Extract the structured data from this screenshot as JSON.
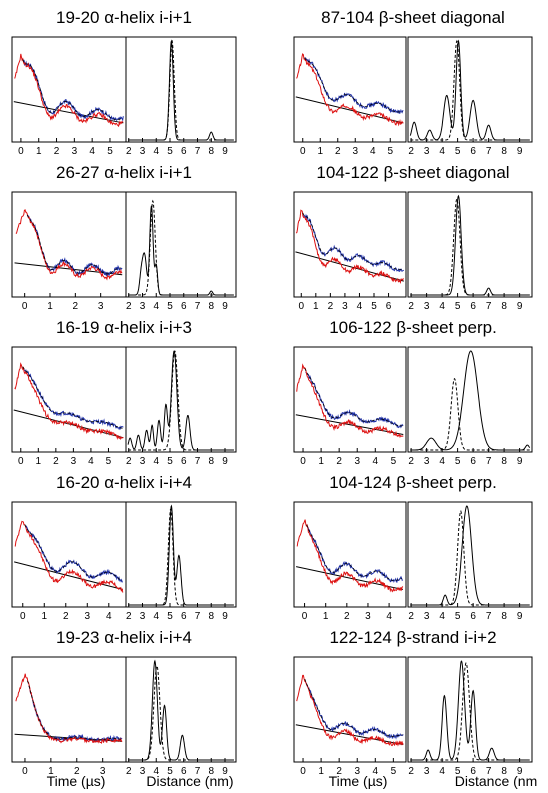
{
  "figure": {
    "x_axis_labels": {
      "time": "Time (µs)",
      "distance": "Distance (nm)",
      "distance_clipped": "Distance (nm"
    }
  },
  "colors": {
    "signal_blue": "#2233aa",
    "signal_red": "#dd1111",
    "fit_black": "#000000",
    "baseline_gray": "#888888"
  },
  "chart_data": [
    {
      "type": "line",
      "title": "19-20 α-helix i-i+1",
      "time_axis": {
        "xlim": [
          -0.5,
          5.9
        ],
        "ticks": [
          0,
          1,
          2,
          3,
          4,
          5
        ]
      },
      "signal": {
        "peak": 1.0,
        "decay": 0.8,
        "osc_freq": 0.55,
        "osc_amp": 0.18,
        "blue_offset": 0.06,
        "baseline_start": 0.36,
        "baseline_end": 0.14
      },
      "distance_axis": {
        "xlim": [
          1.8,
          9.8
        ],
        "ticks": [
          2,
          3,
          4,
          5,
          6,
          7,
          8,
          9
        ]
      },
      "distribution": {
        "solid": [
          {
            "c": 5.1,
            "w": 0.14,
            "h": 1.0
          },
          {
            "c": 8.0,
            "w": 0.12,
            "h": 0.08
          }
        ],
        "dashed": [
          {
            "c": 5.15,
            "w": 0.16,
            "h": 1.0
          }
        ]
      }
    },
    {
      "type": "line",
      "title": "87-104 β-sheet diagonal",
      "time_axis": {
        "xlim": [
          -0.5,
          5.9
        ],
        "ticks": [
          0,
          1,
          2,
          3,
          4,
          5
        ]
      },
      "signal": {
        "peak": 1.0,
        "decay": 0.8,
        "osc_freq": 0.55,
        "osc_amp": 0.12,
        "blue_offset": 0.14,
        "baseline_start": 0.42,
        "baseline_end": 0.14
      },
      "distance_axis": {
        "xlim": [
          1.8,
          9.8
        ],
        "ticks": [
          2,
          3,
          4,
          5,
          6,
          7,
          8,
          9
        ]
      },
      "distribution": {
        "solid": [
          {
            "c": 2.2,
            "w": 0.15,
            "h": 0.18
          },
          {
            "c": 3.2,
            "w": 0.15,
            "h": 0.1
          },
          {
            "c": 4.3,
            "w": 0.2,
            "h": 0.45
          },
          {
            "c": 5.05,
            "w": 0.15,
            "h": 1.0
          },
          {
            "c": 6.0,
            "w": 0.2,
            "h": 0.4
          },
          {
            "c": 7.0,
            "w": 0.15,
            "h": 0.15
          }
        ],
        "dashed": [
          {
            "c": 4.95,
            "w": 0.18,
            "h": 1.0
          }
        ]
      }
    },
    {
      "type": "line",
      "title": "26-27 α-helix i-i+1",
      "time_axis": {
        "xlim": [
          -0.5,
          4.0
        ],
        "ticks": [
          0,
          1,
          2,
          3
        ]
      },
      "signal": {
        "peak": 1.0,
        "decay": 0.55,
        "osc_freq": 0.9,
        "osc_amp": 0.12,
        "blue_offset": 0.04,
        "baseline_start": 0.28,
        "baseline_end": 0.18
      },
      "distance_axis": {
        "xlim": [
          1.8,
          9.8
        ],
        "ticks": [
          2,
          3,
          4,
          5,
          6,
          7,
          8,
          9
        ]
      },
      "distribution": {
        "solid": [
          {
            "c": 2.9,
            "w": 0.12,
            "h": 0.18
          },
          {
            "c": 3.15,
            "w": 0.15,
            "h": 0.4
          },
          {
            "c": 3.65,
            "w": 0.12,
            "h": 0.9
          },
          {
            "c": 4.0,
            "w": 0.1,
            "h": 0.3
          },
          {
            "c": 8.0,
            "w": 0.1,
            "h": 0.04
          }
        ],
        "dashed": [
          {
            "c": 3.75,
            "w": 0.18,
            "h": 0.95
          }
        ]
      }
    },
    {
      "type": "line",
      "title": "104-122 β-sheet diagonal",
      "time_axis": {
        "xlim": [
          -0.5,
          7.2
        ],
        "ticks": [
          0,
          1,
          2,
          3,
          4,
          5,
          6
        ]
      },
      "signal": {
        "peak": 1.0,
        "decay": 0.75,
        "osc_freq": 0.6,
        "osc_amp": 0.12,
        "blue_offset": 0.14,
        "baseline_start": 0.42,
        "baseline_end": 0.1
      },
      "distance_axis": {
        "xlim": [
          1.8,
          9.8
        ],
        "ticks": [
          2,
          3,
          4,
          5,
          6,
          7,
          8,
          9
        ]
      },
      "distribution": {
        "solid": [
          {
            "c": 5.05,
            "w": 0.18,
            "h": 1.0
          },
          {
            "c": 7.0,
            "w": 0.12,
            "h": 0.07
          }
        ],
        "dashed": [
          {
            "c": 4.95,
            "w": 0.2,
            "h": 0.97
          }
        ]
      }
    },
    {
      "type": "line",
      "title": "16-19 α-helix i-i+3",
      "time_axis": {
        "xlim": [
          -0.5,
          6.0
        ],
        "ticks": [
          0,
          1,
          2,
          3,
          4,
          5
        ]
      },
      "signal": {
        "peak": 1.0,
        "decay": 0.9,
        "osc_freq": 0.5,
        "osc_amp": 0.06,
        "blue_offset": 0.12,
        "baseline_start": 0.38,
        "baseline_end": 0.08
      },
      "distance_axis": {
        "xlim": [
          1.8,
          9.8
        ],
        "ticks": [
          2,
          3,
          4,
          5,
          6,
          7,
          8,
          9
        ]
      },
      "distribution": {
        "solid": [
          {
            "c": 2.1,
            "w": 0.12,
            "h": 0.12
          },
          {
            "c": 2.7,
            "w": 0.12,
            "h": 0.15
          },
          {
            "c": 3.3,
            "w": 0.12,
            "h": 0.2
          },
          {
            "c": 3.7,
            "w": 0.1,
            "h": 0.25
          },
          {
            "c": 4.2,
            "w": 0.12,
            "h": 0.3
          },
          {
            "c": 4.7,
            "w": 0.12,
            "h": 0.45
          },
          {
            "c": 5.3,
            "w": 0.2,
            "h": 1.0
          },
          {
            "c": 6.3,
            "w": 0.15,
            "h": 0.35
          }
        ],
        "dashed": [
          {
            "c": 5.35,
            "w": 0.22,
            "h": 1.0
          }
        ]
      }
    },
    {
      "type": "line",
      "title": "106-122 β-sheet perp.",
      "time_axis": {
        "xlim": [
          -0.5,
          5.7
        ],
        "ticks": [
          0,
          1,
          2,
          3,
          4,
          5
        ]
      },
      "signal": {
        "peak": 1.0,
        "decay": 0.7,
        "osc_freq": 0.55,
        "osc_amp": 0.1,
        "blue_offset": 0.12,
        "baseline_start": 0.32,
        "baseline_end": 0.12
      },
      "distance_axis": {
        "xlim": [
          1.8,
          9.8
        ],
        "ticks": [
          2,
          3,
          4,
          5,
          6,
          7,
          8,
          9
        ]
      },
      "distribution": {
        "solid": [
          {
            "c": 3.3,
            "w": 0.3,
            "h": 0.12
          },
          {
            "c": 5.85,
            "w": 0.45,
            "h": 1.0
          },
          {
            "c": 9.5,
            "w": 0.12,
            "h": 0.05
          }
        ],
        "dashed": [
          {
            "c": 4.8,
            "w": 0.22,
            "h": 0.72
          }
        ]
      }
    },
    {
      "type": "line",
      "title": "16-20 α-helix i-i+4",
      "time_axis": {
        "xlim": [
          -0.5,
          4.8
        ],
        "ticks": [
          0,
          1,
          2,
          3,
          4
        ]
      },
      "signal": {
        "peak": 1.0,
        "decay": 0.55,
        "osc_freq": 0.6,
        "osc_amp": 0.15,
        "blue_offset": 0.12,
        "baseline_start": 0.42,
        "baseline_end": 0.12
      },
      "distance_axis": {
        "xlim": [
          1.8,
          9.8
        ],
        "ticks": [
          2,
          3,
          4,
          5,
          6,
          7,
          8,
          9
        ]
      },
      "distribution": {
        "solid": [
          {
            "c": 5.1,
            "w": 0.15,
            "h": 1.0
          },
          {
            "c": 5.65,
            "w": 0.15,
            "h": 0.5
          }
        ],
        "dashed": [
          {
            "c": 5.05,
            "w": 0.17,
            "h": 0.97
          }
        ]
      }
    },
    {
      "type": "line",
      "title": "104-124 β-sheet perp.",
      "time_axis": {
        "xlim": [
          -0.5,
          4.8
        ],
        "ticks": [
          0,
          1,
          2,
          3,
          4
        ]
      },
      "signal": {
        "peak": 1.0,
        "decay": 0.5,
        "osc_freq": 0.7,
        "osc_amp": 0.12,
        "blue_offset": 0.12,
        "baseline_start": 0.36,
        "baseline_end": 0.12
      },
      "distance_axis": {
        "xlim": [
          1.8,
          9.8
        ],
        "ticks": [
          2,
          3,
          4,
          5,
          6,
          7,
          8,
          9
        ]
      },
      "distribution": {
        "solid": [
          {
            "c": 4.2,
            "w": 0.12,
            "h": 0.1
          },
          {
            "c": 5.6,
            "w": 0.3,
            "h": 1.0
          }
        ],
        "dashed": [
          {
            "c": 5.2,
            "w": 0.2,
            "h": 0.95
          }
        ]
      }
    },
    {
      "type": "line",
      "title": "19-23 α-helix i-i+4",
      "time_axis": {
        "xlim": [
          -0.5,
          3.9
        ],
        "ticks": [
          0,
          1,
          2,
          3
        ]
      },
      "signal": {
        "peak": 1.0,
        "decay": 0.45,
        "osc_freq": 0.7,
        "osc_amp": 0.03,
        "blue_offset": 0.02,
        "baseline_start": 0.2,
        "baseline_end": 0.16
      },
      "distance_axis": {
        "xlim": [
          1.8,
          9.8
        ],
        "ticks": [
          2,
          3,
          4,
          5,
          6,
          7,
          8,
          9
        ]
      },
      "distribution": {
        "solid": [
          {
            "c": 3.9,
            "w": 0.18,
            "h": 1.0
          },
          {
            "c": 4.6,
            "w": 0.15,
            "h": 0.55
          },
          {
            "c": 5.9,
            "w": 0.15,
            "h": 0.25
          }
        ],
        "dashed": [
          {
            "c": 4.05,
            "w": 0.22,
            "h": 0.95
          }
        ]
      }
    },
    {
      "type": "line",
      "title": "122-124 β-strand i-i+2",
      "time_axis": {
        "xlim": [
          -0.5,
          5.7
        ],
        "ticks": [
          0,
          1,
          2,
          3,
          4,
          5
        ]
      },
      "signal": {
        "peak": 1.0,
        "decay": 0.6,
        "osc_freq": 0.6,
        "osc_amp": 0.1,
        "blue_offset": 0.1,
        "baseline_start": 0.32,
        "baseline_end": 0.12
      },
      "distance_axis": {
        "xlim": [
          1.8,
          9.8
        ],
        "ticks": [
          2,
          3,
          4,
          5,
          6,
          7,
          8,
          9
        ]
      },
      "distribution": {
        "solid": [
          {
            "c": 3.1,
            "w": 0.12,
            "h": 0.1
          },
          {
            "c": 4.15,
            "w": 0.15,
            "h": 0.65
          },
          {
            "c": 5.25,
            "w": 0.2,
            "h": 1.0
          },
          {
            "c": 6.0,
            "w": 0.15,
            "h": 0.7
          },
          {
            "c": 7.2,
            "w": 0.15,
            "h": 0.12
          }
        ],
        "dashed": [
          {
            "c": 5.55,
            "w": 0.22,
            "h": 0.98
          }
        ]
      }
    }
  ]
}
